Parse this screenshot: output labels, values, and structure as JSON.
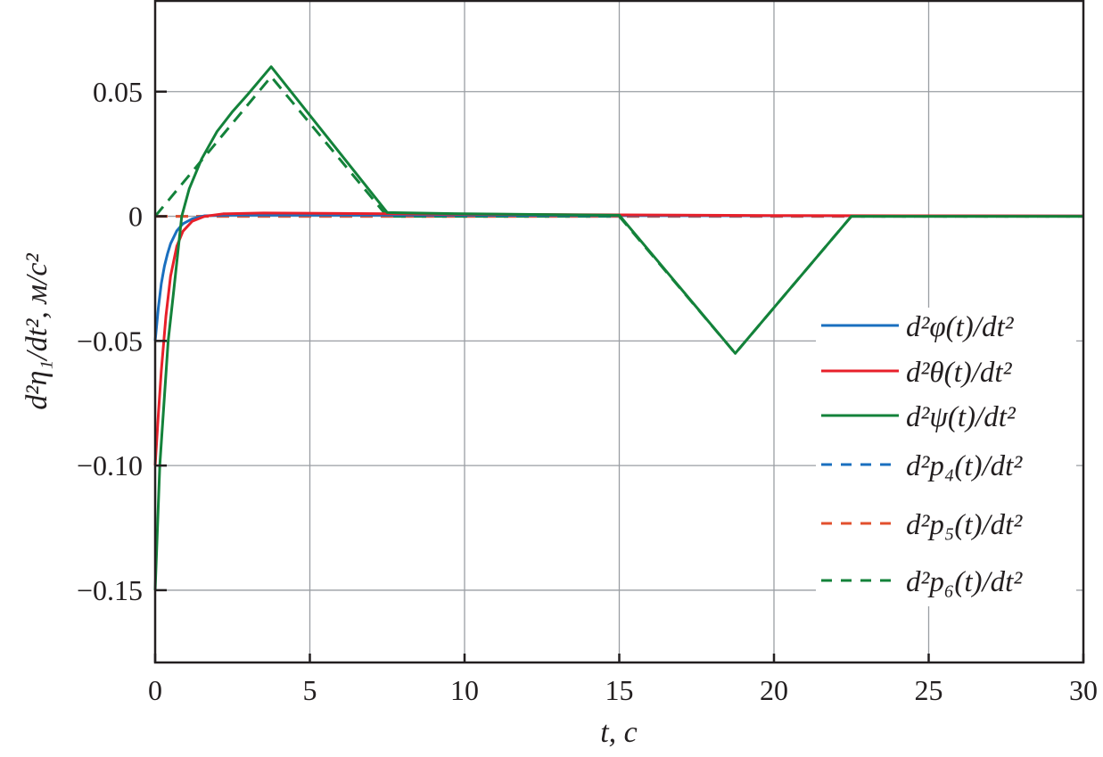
{
  "chart_data": {
    "type": "line",
    "title": "",
    "xlabel": "t, с",
    "ylabel": "d²η₁/dt², м/с²",
    "xlim": [
      0,
      30
    ],
    "ylim": [
      -0.179,
      0.0864
    ],
    "grid": true,
    "legend_position": "right",
    "x_ticks": [
      0,
      5,
      10,
      15,
      20,
      25,
      30
    ],
    "x_tick_labels": [
      "0",
      "5",
      "10",
      "15",
      "20",
      "25",
      "30"
    ],
    "y_ticks": [
      0.05,
      0,
      -0.05,
      -0.1,
      -0.15
    ],
    "y_tick_labels": [
      "0.05",
      "0",
      "−0.05",
      "−0.10",
      "−0.15"
    ],
    "series": [
      {
        "name": "d²p₄(t)/dt²",
        "color": "#1a6fbf",
        "dashed": true,
        "points": [
          [
            0,
            0
          ],
          [
            30,
            0
          ]
        ]
      },
      {
        "name": "d²p₅(t)/dt²",
        "color": "#e2502e",
        "dashed": true,
        "points": [
          [
            0,
            0
          ],
          [
            30,
            0
          ]
        ]
      },
      {
        "name": "d²p₆(t)/dt²",
        "color": "#13823a",
        "dashed": true,
        "points": [
          [
            0,
            0
          ],
          [
            3.75,
            0.056
          ],
          [
            7.5,
            0
          ],
          [
            15,
            0
          ],
          [
            18.75,
            -0.055
          ],
          [
            22.5,
            0
          ],
          [
            30,
            0
          ]
        ]
      },
      {
        "name": "d²φ(t)/dt²",
        "color": "#1a6fbf",
        "dashed": false,
        "points": [
          [
            0,
            -0.05
          ],
          [
            0.1,
            -0.037
          ],
          [
            0.2,
            -0.027
          ],
          [
            0.3,
            -0.02
          ],
          [
            0.4,
            -0.015
          ],
          [
            0.5,
            -0.011
          ],
          [
            0.7,
            -0.0058
          ],
          [
            0.9,
            -0.003
          ],
          [
            1.2,
            -0.001
          ],
          [
            1.6,
            0.0002
          ],
          [
            2.5,
            0.0005
          ],
          [
            5,
            0.0005
          ],
          [
            10,
            0.0004
          ],
          [
            15,
            0.0003
          ],
          [
            20,
            0.0002
          ],
          [
            30,
            0.0001
          ]
        ]
      },
      {
        "name": "d²θ(t)/dt²",
        "color": "#e8202a",
        "dashed": false,
        "points": [
          [
            0,
            -0.1
          ],
          [
            0.1,
            -0.08
          ],
          [
            0.2,
            -0.062
          ],
          [
            0.35,
            -0.04
          ],
          [
            0.5,
            -0.024
          ],
          [
            0.7,
            -0.012
          ],
          [
            0.9,
            -0.006
          ],
          [
            1.2,
            -0.002
          ],
          [
            1.6,
            0.0
          ],
          [
            2.2,
            0.001
          ],
          [
            3.5,
            0.0013
          ],
          [
            10,
            0.0008
          ],
          [
            20,
            0.0003
          ],
          [
            30,
            0.0001
          ]
        ]
      },
      {
        "name": "d²ψ(t)/dt²",
        "color": "#13823a",
        "dashed": false,
        "points": [
          [
            0,
            -0.15
          ],
          [
            0.15,
            -0.1
          ],
          [
            0.42,
            -0.05
          ],
          [
            0.6,
            -0.03
          ],
          [
            0.86,
            0
          ],
          [
            1.1,
            0.011
          ],
          [
            1.5,
            0.023
          ],
          [
            2,
            0.034
          ],
          [
            2.5,
            0.042
          ],
          [
            3,
            0.049
          ],
          [
            3.75,
            0.06
          ],
          [
            7.5,
            0.0015
          ],
          [
            10,
            0.001
          ],
          [
            15,
            0.0004
          ],
          [
            18.75,
            -0.055
          ],
          [
            22.5,
            0
          ],
          [
            30,
            0
          ]
        ]
      }
    ],
    "legend_order": [
      3,
      4,
      5,
      0,
      1,
      2
    ]
  }
}
